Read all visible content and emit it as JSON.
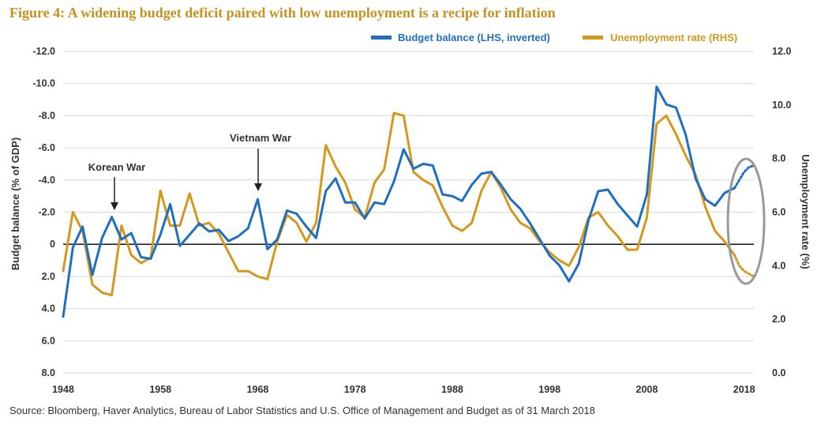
{
  "figure": {
    "title": "Figure 4: A widening budget deficit paired with low unemployment is a recipe for inflation",
    "source": "Source: Bloomberg, Haver Analytics, Bureau of Labor Statistics and U.S. Office of Management and Budget as of 31 March 2018"
  },
  "colors": {
    "budget": "#1f6fc1",
    "unemployment": "#d4981c",
    "grid": "#d9d9d9",
    "zero_line": "#222222",
    "highlight_ellipse": "#999999"
  },
  "chart_data": {
    "type": "line",
    "xlabel": "",
    "ylabel": "Budget balance (% of GDP)",
    "y2label": "Unemployment rate (%)",
    "x_ticks": [
      "1948",
      "1958",
      "1968",
      "1978",
      "1988",
      "1998",
      "2008",
      "2018"
    ],
    "y_ticks_left": [
      "-12.0",
      "-10.0",
      "-8.0",
      "-6.0",
      "-4.0",
      "-2.0",
      "0",
      "2.0",
      "4.0",
      "6.0",
      "8.0"
    ],
    "y_ticks_right": [
      "12.0",
      "10.0",
      "8.0",
      "6.0",
      "4.0",
      "2.0",
      "0.0"
    ],
    "ylim_left": [
      -12,
      8
    ],
    "ylim_left_inverted": true,
    "ylim_right": [
      0,
      12
    ],
    "xlim": [
      1948,
      2019
    ],
    "grid": "horizontal",
    "legend_position": "top-right",
    "annotations": [
      {
        "text": "Korean War",
        "x": 1952
      },
      {
        "text": "Vietnam War",
        "x": 1967.8
      }
    ],
    "series": [
      {
        "name": "Budget balance (LHS, inverted)",
        "axis": "left",
        "x": [
          1948,
          1949,
          1950,
          1951,
          1952,
          1953,
          1954,
          1955,
          1956,
          1957,
          1958,
          1959,
          1960,
          1961,
          1962,
          1963,
          1964,
          1965,
          1966,
          1967,
          1968,
          1969,
          1970,
          1971,
          1972,
          1973,
          1974,
          1975,
          1976,
          1977,
          1978,
          1979,
          1980,
          1981,
          1982,
          1983,
          1984,
          1985,
          1986,
          1987,
          1988,
          1989,
          1990,
          1991,
          1992,
          1993,
          1994,
          1995,
          1996,
          1997,
          1998,
          1999,
          2000,
          2001,
          2002,
          2003,
          2004,
          2005,
          2006,
          2007,
          2008,
          2009,
          2010,
          2011,
          2012,
          2013,
          2014,
          2015,
          2016,
          2017
        ],
        "values": [
          4.5,
          0.2,
          -1.1,
          1.9,
          -0.4,
          -1.7,
          -0.3,
          -0.7,
          0.8,
          0.9,
          -0.6,
          -2.5,
          0.1,
          -0.6,
          -1.3,
          -0.8,
          -0.9,
          -0.2,
          -0.5,
          -1.0,
          -2.8,
          0.3,
          -0.3,
          -2.1,
          -1.9,
          -1.1,
          -0.4,
          -3.3,
          -4.1,
          -2.6,
          -2.6,
          -1.6,
          -2.6,
          -2.5,
          -3.9,
          -5.9,
          -4.7,
          -5.0,
          -4.9,
          -3.1,
          -3.0,
          -2.7,
          -3.7,
          -4.4,
          -4.5,
          -3.7,
          -2.8,
          -2.2,
          -1.3,
          -0.3,
          0.7,
          1.3,
          2.3,
          1.2,
          -1.5,
          -3.3,
          -3.4,
          -2.5,
          -1.8,
          -1.1,
          -3.1,
          -9.8,
          -8.7,
          -8.5,
          -6.8,
          -4.1,
          -2.8,
          -2.4,
          -3.2,
          -3.5
        ],
        "projection_x": [
          2017,
          2017.5,
          2018,
          2018.5,
          2019
        ],
        "projection_values": [
          -3.5,
          -4.0,
          -4.5,
          -4.8,
          -4.9
        ]
      },
      {
        "name": "Unemployment rate (RHS)",
        "axis": "right",
        "x": [
          1948,
          1949,
          1950,
          1951,
          1952,
          1953,
          1954,
          1955,
          1956,
          1957,
          1958,
          1959,
          1960,
          1961,
          1962,
          1963,
          1964,
          1965,
          1966,
          1967,
          1968,
          1969,
          1970,
          1971,
          1972,
          1973,
          1974,
          1975,
          1976,
          1977,
          1978,
          1979,
          1980,
          1981,
          1982,
          1983,
          1984,
          1985,
          1986,
          1987,
          1988,
          1989,
          1990,
          1991,
          1992,
          1993,
          1994,
          1995,
          1996,
          1997,
          1998,
          1999,
          2000,
          2001,
          2002,
          2003,
          2004,
          2005,
          2006,
          2007,
          2008,
          2009,
          2010,
          2011,
          2012,
          2013,
          2014,
          2015,
          2016,
          2017
        ],
        "values": [
          3.8,
          6.0,
          5.3,
          3.3,
          3.0,
          2.9,
          5.5,
          4.4,
          4.1,
          4.3,
          6.8,
          5.5,
          5.5,
          6.7,
          5.5,
          5.6,
          5.2,
          4.5,
          3.8,
          3.8,
          3.6,
          3.5,
          4.9,
          5.9,
          5.6,
          4.9,
          5.6,
          8.5,
          7.7,
          7.1,
          6.1,
          5.8,
          7.1,
          7.6,
          9.7,
          9.6,
          7.5,
          7.2,
          7.0,
          6.2,
          5.5,
          5.3,
          5.6,
          6.8,
          7.5,
          6.9,
          6.1,
          5.6,
          5.4,
          4.9,
          4.5,
          4.2,
          4.0,
          4.7,
          5.8,
          6.0,
          5.5,
          5.1,
          4.6,
          4.6,
          5.8,
          9.3,
          9.6,
          8.9,
          8.1,
          7.4,
          6.2,
          5.3,
          4.9,
          4.4
        ],
        "projection_x": [
          2017,
          2017.5,
          2018,
          2018.5,
          2019
        ],
        "projection_values": [
          4.4,
          4.0,
          3.8,
          3.7,
          3.6
        ]
      }
    ]
  }
}
